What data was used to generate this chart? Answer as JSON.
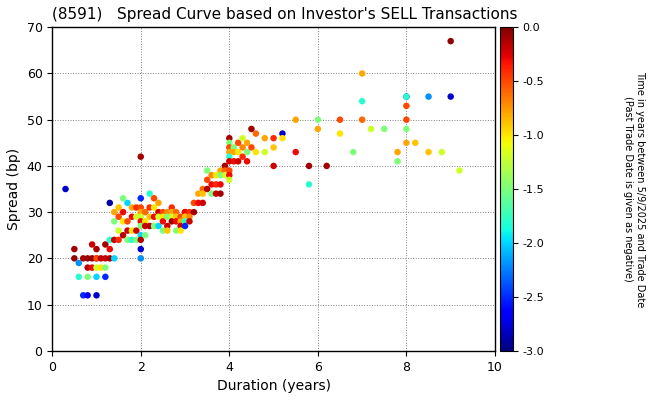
{
  "title": "(8591)   Spread Curve based on Investor's SELL Transactions",
  "xlabel": "Duration (years)",
  "ylabel": "Spread (bp)",
  "xlim": [
    0,
    10
  ],
  "ylim": [
    0,
    70
  ],
  "xticks": [
    0,
    2,
    4,
    6,
    8,
    10
  ],
  "yticks": [
    0,
    10,
    20,
    30,
    40,
    50,
    60,
    70
  ],
  "colorbar_label": "Time in years between 5/9/2025 and Trade Date\n(Past Trade Date is given as negative)",
  "colorbar_ticks": [
    0.0,
    -0.5,
    -1.0,
    -1.5,
    -2.0,
    -2.5,
    -3.0
  ],
  "vmin": -3.0,
  "vmax": 0.0,
  "points": [
    [
      0.3,
      35,
      -2.8
    ],
    [
      0.5,
      22,
      -0.1
    ],
    [
      0.5,
      20,
      -0.05
    ],
    [
      0.6,
      19,
      -2.2
    ],
    [
      0.6,
      16,
      -1.8
    ],
    [
      0.7,
      20,
      -0.1
    ],
    [
      0.7,
      12,
      -2.5
    ],
    [
      0.8,
      20,
      -0.08
    ],
    [
      0.8,
      18,
      -0.15
    ],
    [
      0.8,
      16,
      -1.5
    ],
    [
      0.8,
      12,
      -2.7
    ],
    [
      0.9,
      23,
      -0.2
    ],
    [
      0.9,
      20,
      -0.05
    ],
    [
      0.9,
      18,
      -0.3
    ],
    [
      1.0,
      22,
      -0.1
    ],
    [
      1.0,
      20,
      -0.05
    ],
    [
      1.0,
      20,
      -0.5
    ],
    [
      1.0,
      18,
      -1.2
    ],
    [
      1.0,
      16,
      -2.0
    ],
    [
      1.0,
      12,
      -2.8
    ],
    [
      1.1,
      20,
      -0.15
    ],
    [
      1.1,
      18,
      -1.0
    ],
    [
      1.2,
      23,
      -0.1
    ],
    [
      1.2,
      20,
      -0.2
    ],
    [
      1.2,
      18,
      -1.5
    ],
    [
      1.2,
      16,
      -2.5
    ],
    [
      1.3,
      32,
      -2.9
    ],
    [
      1.3,
      24,
      -1.8
    ],
    [
      1.3,
      22,
      -0.3
    ],
    [
      1.3,
      20,
      -0.1
    ],
    [
      1.4,
      30,
      -0.8
    ],
    [
      1.4,
      28,
      -1.5
    ],
    [
      1.4,
      24,
      -0.2
    ],
    [
      1.4,
      20,
      -2.0
    ],
    [
      1.5,
      31,
      -0.9
    ],
    [
      1.5,
      29,
      -0.5
    ],
    [
      1.5,
      26,
      -1.2
    ],
    [
      1.5,
      24,
      -0.4
    ],
    [
      1.6,
      33,
      -1.5
    ],
    [
      1.6,
      30,
      -0.3
    ],
    [
      1.6,
      28,
      -1.0
    ],
    [
      1.6,
      25,
      -0.15
    ],
    [
      1.7,
      32,
      -2.0
    ],
    [
      1.7,
      28,
      -0.5
    ],
    [
      1.7,
      26,
      -0.2
    ],
    [
      1.7,
      24,
      -1.5
    ],
    [
      1.8,
      31,
      -0.8
    ],
    [
      1.8,
      29,
      -0.3
    ],
    [
      1.8,
      26,
      -1.0
    ],
    [
      1.8,
      24,
      -1.8
    ],
    [
      1.9,
      31,
      -0.4
    ],
    [
      1.9,
      29,
      -1.2
    ],
    [
      1.9,
      26,
      -0.2
    ],
    [
      1.9,
      24,
      -1.5
    ],
    [
      2.0,
      42,
      -0.1
    ],
    [
      2.0,
      33,
      -2.5
    ],
    [
      2.0,
      31,
      -0.5
    ],
    [
      2.0,
      30,
      -0.8
    ],
    [
      2.0,
      29,
      -1.2
    ],
    [
      2.0,
      28,
      -0.3
    ],
    [
      2.0,
      27,
      -1.5
    ],
    [
      2.0,
      25,
      -2.0
    ],
    [
      2.0,
      24,
      -0.15
    ],
    [
      2.0,
      22,
      -2.8
    ],
    [
      2.0,
      20,
      -1.0
    ],
    [
      2.0,
      20,
      -2.2
    ],
    [
      2.1,
      30,
      -0.6
    ],
    [
      2.1,
      28,
      -1.0
    ],
    [
      2.1,
      27,
      -0.2
    ],
    [
      2.1,
      25,
      -1.5
    ],
    [
      2.2,
      34,
      -1.8
    ],
    [
      2.2,
      31,
      -0.4
    ],
    [
      2.2,
      29,
      -0.9
    ],
    [
      2.2,
      27,
      -0.15
    ],
    [
      2.3,
      33,
      -0.5
    ],
    [
      2.3,
      31,
      -1.0
    ],
    [
      2.3,
      29,
      -0.3
    ],
    [
      2.3,
      27,
      -1.5
    ],
    [
      2.4,
      32,
      -0.8
    ],
    [
      2.4,
      30,
      -0.2
    ],
    [
      2.4,
      29,
      -1.2
    ],
    [
      2.4,
      27,
      -2.0
    ],
    [
      2.5,
      30,
      -0.5
    ],
    [
      2.5,
      29,
      -1.0
    ],
    [
      2.5,
      28,
      -0.3
    ],
    [
      2.5,
      26,
      -1.5
    ],
    [
      2.6,
      30,
      -0.7
    ],
    [
      2.6,
      29,
      -1.5
    ],
    [
      2.6,
      27,
      -0.2
    ],
    [
      2.6,
      26,
      -0.9
    ],
    [
      2.7,
      31,
      -0.4
    ],
    [
      2.7,
      30,
      -0.8
    ],
    [
      2.7,
      29,
      -1.2
    ],
    [
      2.7,
      28,
      -0.1
    ],
    [
      2.8,
      30,
      -0.6
    ],
    [
      2.8,
      29,
      -0.9
    ],
    [
      2.8,
      28,
      -0.3
    ],
    [
      2.8,
      26,
      -1.5
    ],
    [
      2.9,
      29,
      -0.5
    ],
    [
      2.9,
      28,
      -0.8
    ],
    [
      2.9,
      27,
      -0.2
    ],
    [
      2.9,
      26,
      -1.0
    ],
    [
      3.0,
      30,
      -0.1
    ],
    [
      3.0,
      30,
      -0.3
    ],
    [
      3.0,
      29,
      -0.6
    ],
    [
      3.0,
      29,
      -0.9
    ],
    [
      3.0,
      28,
      -1.2
    ],
    [
      3.0,
      28,
      -1.8
    ],
    [
      3.0,
      27,
      -2.5
    ],
    [
      3.1,
      30,
      -0.4
    ],
    [
      3.1,
      29,
      -0.7
    ],
    [
      3.1,
      28,
      -0.2
    ],
    [
      3.2,
      32,
      -0.5
    ],
    [
      3.2,
      30,
      -0.1
    ],
    [
      3.3,
      34,
      -0.8
    ],
    [
      3.3,
      32,
      -0.3
    ],
    [
      3.4,
      35,
      -0.6
    ],
    [
      3.4,
      34,
      -0.9
    ],
    [
      3.4,
      32,
      -0.2
    ],
    [
      3.5,
      39,
      -1.5
    ],
    [
      3.5,
      37,
      -0.5
    ],
    [
      3.5,
      35,
      -0.15
    ],
    [
      3.6,
      38,
      -0.7
    ],
    [
      3.6,
      36,
      -0.3
    ],
    [
      3.6,
      34,
      -1.5
    ],
    [
      3.7,
      38,
      -1.0
    ],
    [
      3.7,
      36,
      -0.4
    ],
    [
      3.7,
      34,
      -0.2
    ],
    [
      3.8,
      39,
      -0.8
    ],
    [
      3.8,
      38,
      -1.5
    ],
    [
      3.8,
      36,
      -0.3
    ],
    [
      3.8,
      34,
      -0.1
    ],
    [
      3.9,
      40,
      -0.1
    ],
    [
      3.9,
      39,
      -0.6
    ],
    [
      3.9,
      38,
      -1.2
    ],
    [
      4.0,
      46,
      -0.1
    ],
    [
      4.0,
      45,
      -1.5
    ],
    [
      4.0,
      44,
      -0.5
    ],
    [
      4.0,
      43,
      -0.8
    ],
    [
      4.0,
      42,
      -1.8
    ],
    [
      4.0,
      41,
      -0.2
    ],
    [
      4.0,
      39,
      -0.5
    ],
    [
      4.0,
      38,
      -0.3
    ],
    [
      4.0,
      37,
      -1.2
    ],
    [
      4.1,
      44,
      -1.5
    ],
    [
      4.1,
      43,
      -0.8
    ],
    [
      4.1,
      41,
      -0.3
    ],
    [
      4.2,
      45,
      -0.5
    ],
    [
      4.2,
      43,
      -1.0
    ],
    [
      4.2,
      41,
      -0.2
    ],
    [
      4.3,
      46,
      -1.2
    ],
    [
      4.3,
      44,
      -0.7
    ],
    [
      4.3,
      42,
      -0.4
    ],
    [
      4.4,
      45,
      -0.8
    ],
    [
      4.4,
      43,
      -1.5
    ],
    [
      4.4,
      41,
      -0.3
    ],
    [
      4.5,
      48,
      -0.1
    ],
    [
      4.5,
      44,
      -0.5
    ],
    [
      4.6,
      47,
      -0.6
    ],
    [
      4.6,
      43,
      -1.0
    ],
    [
      4.8,
      46,
      -0.8
    ],
    [
      4.8,
      43,
      -1.2
    ],
    [
      5.0,
      46,
      -0.4
    ],
    [
      5.0,
      44,
      -0.9
    ],
    [
      5.0,
      40,
      -0.2
    ],
    [
      5.2,
      47,
      -2.8
    ],
    [
      5.2,
      46,
      -1.0
    ],
    [
      5.5,
      50,
      -0.8
    ],
    [
      5.5,
      43,
      -0.3
    ],
    [
      5.8,
      40,
      -0.1
    ],
    [
      5.8,
      36,
      -1.8
    ],
    [
      6.0,
      50,
      -1.5
    ],
    [
      6.0,
      48,
      -0.8
    ],
    [
      6.2,
      40,
      -0.1
    ],
    [
      6.5,
      50,
      -0.5
    ],
    [
      6.5,
      47,
      -1.0
    ],
    [
      6.8,
      43,
      -1.5
    ],
    [
      7.0,
      60,
      -0.8
    ],
    [
      7.0,
      54,
      -1.8
    ],
    [
      7.0,
      50,
      -0.6
    ],
    [
      7.2,
      48,
      -1.2
    ],
    [
      7.5,
      48,
      -1.5
    ],
    [
      7.8,
      43,
      -0.8
    ],
    [
      7.8,
      41,
      -1.5
    ],
    [
      8.0,
      55,
      -2.8
    ],
    [
      8.0,
      55,
      -1.8
    ],
    [
      8.0,
      53,
      -0.5
    ],
    [
      8.0,
      50,
      -0.5
    ],
    [
      8.0,
      48,
      -1.5
    ],
    [
      8.0,
      45,
      -0.8
    ],
    [
      8.2,
      45,
      -0.9
    ],
    [
      8.5,
      55,
      -2.2
    ],
    [
      8.5,
      43,
      -0.9
    ],
    [
      8.8,
      43,
      -1.2
    ],
    [
      9.0,
      67,
      -0.05
    ],
    [
      9.0,
      55,
      -2.8
    ],
    [
      9.2,
      39,
      -1.2
    ]
  ]
}
